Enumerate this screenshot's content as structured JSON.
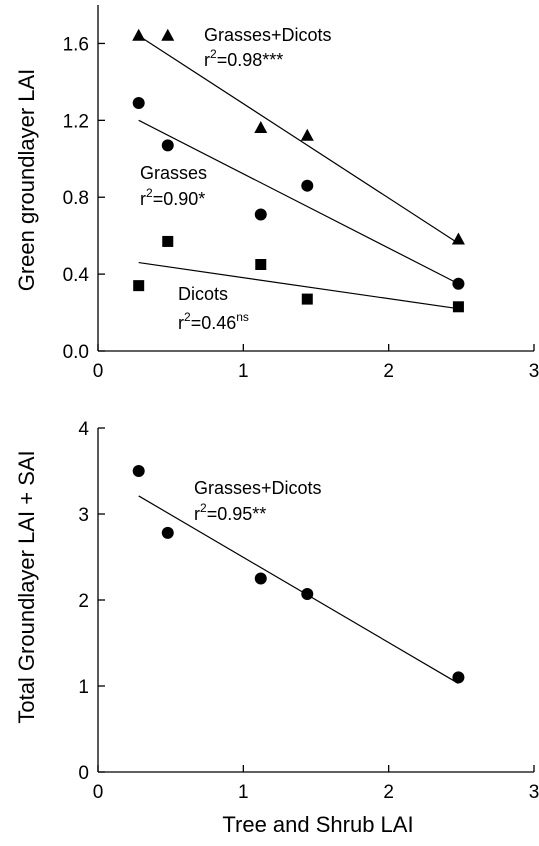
{
  "chart_data": [
    {
      "type": "scatter",
      "panel": "top",
      "title": "",
      "xlabel": "",
      "ylabel": "Green groundlayer LAI",
      "xlim": [
        0,
        3
      ],
      "ylim": [
        0,
        1.8
      ],
      "xticks": [
        0,
        1,
        2,
        3
      ],
      "xtick_labels": [
        "0",
        "1",
        "2",
        "3"
      ],
      "yticks": [
        0.0,
        0.4,
        0.8,
        1.2,
        1.6
      ],
      "ytick_labels": [
        "0.0",
        "0.4",
        "0.8",
        "1.2",
        "1.6"
      ],
      "grid": false,
      "series": [
        {
          "marker": "triangle",
          "x": [
            0.28,
            0.48,
            1.12,
            1.44,
            2.48
          ],
          "y": [
            1.64,
            1.64,
            1.16,
            1.12,
            0.58
          ],
          "fit": {
            "x": [
              0.28,
              2.48
            ],
            "y": [
              1.64,
              0.56
            ]
          },
          "annotation": {
            "text": "Grasses+Dicots",
            "r2_prefix": "r",
            "r2_exp": "2",
            "r2_value": "=0.98***"
          }
        },
        {
          "marker": "circle",
          "x": [
            0.28,
            0.48,
            1.12,
            1.44,
            2.48
          ],
          "y": [
            1.29,
            1.07,
            0.71,
            0.86,
            0.35
          ],
          "fit": {
            "x": [
              0.28,
              2.48
            ],
            "y": [
              1.2,
              0.35
            ]
          },
          "annotation": {
            "text": "Grasses",
            "r2_prefix": "r",
            "r2_exp": "2",
            "r2_value": "=0.90*"
          }
        },
        {
          "marker": "square",
          "x": [
            0.28,
            0.48,
            1.12,
            1.44,
            2.48
          ],
          "y": [
            0.34,
            0.57,
            0.45,
            0.27,
            0.23
          ],
          "fit": {
            "x": [
              0.28,
              2.48
            ],
            "y": [
              0.46,
              0.22
            ]
          },
          "annotation": {
            "text": "Dicots",
            "r2_prefix": "r",
            "r2_exp": "2",
            "r2_value": "=0.46",
            "r2_sup": "ns"
          }
        }
      ]
    },
    {
      "type": "scatter",
      "panel": "bottom",
      "title": "",
      "xlabel": "Tree and Shrub LAI",
      "ylabel": "Total Groundlayer LAI + SAI",
      "xlim": [
        0,
        3
      ],
      "ylim": [
        0,
        4
      ],
      "xticks": [
        0,
        1,
        2,
        3
      ],
      "xtick_labels": [
        "0",
        "1",
        "2",
        "3"
      ],
      "yticks": [
        0,
        1,
        2,
        3,
        4
      ],
      "ytick_labels": [
        "0",
        "1",
        "2",
        "3",
        "4"
      ],
      "grid": false,
      "series": [
        {
          "marker": "circle",
          "x": [
            0.28,
            0.48,
            1.12,
            1.44,
            2.48
          ],
          "y": [
            3.5,
            2.78,
            2.25,
            2.07,
            1.1
          ],
          "fit": {
            "x": [
              0.28,
              2.48
            ],
            "y": [
              3.21,
              1.03
            ]
          },
          "annotation": {
            "text": "Grasses+Dicots",
            "r2_prefix": "r",
            "r2_exp": "2",
            "r2_value": "=0.95**"
          }
        }
      ]
    }
  ]
}
